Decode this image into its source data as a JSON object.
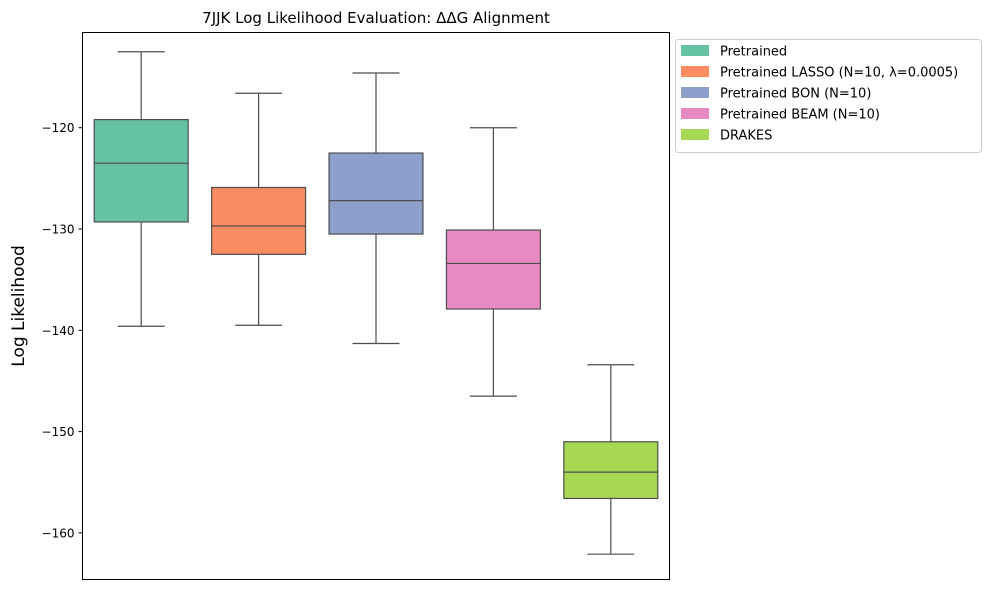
{
  "chart_data": {
    "type": "box",
    "title": "7JJK Log Likelihood Evaluation: ΔΔG Alignment",
    "xlabel": "",
    "ylabel": "Log Likelihood",
    "ylim": [
      -164.6,
      -110.6
    ],
    "yticks": [
      -160,
      -150,
      -140,
      -130,
      -120
    ],
    "yticks_labels": [
      "−160",
      "−150",
      "−140",
      "−130",
      "−120"
    ],
    "legend_position": "outside-top-right",
    "grid": false,
    "series": [
      {
        "name": "Pretrained",
        "color": "#66c2a5",
        "whisker_low": -139.6,
        "q1": -129.3,
        "median": -123.5,
        "q3": -119.2,
        "whisker_high": -112.5
      },
      {
        "name": "Pretrained LASSO (N=10, λ=0.0005)",
        "color": "#fc8d62",
        "whisker_low": -139.5,
        "q1": -132.5,
        "median": -129.7,
        "q3": -125.9,
        "whisker_high": -116.6
      },
      {
        "name": "Pretrained BON (N=10)",
        "color": "#8da0cb",
        "whisker_low": -141.3,
        "q1": -130.5,
        "median": -127.2,
        "q3": -122.5,
        "whisker_high": -114.6
      },
      {
        "name": "Pretrained BEAM (N=10)",
        "color": "#e78ac3",
        "whisker_low": -146.5,
        "q1": -137.9,
        "median": -133.4,
        "q3": -130.1,
        "whisker_high": -120.0
      },
      {
        "name": "DRAKES",
        "color": "#a6d854",
        "whisker_low": -162.1,
        "q1": -156.6,
        "median": -154.0,
        "q3": -151.0,
        "whisker_high": -143.4
      }
    ]
  }
}
